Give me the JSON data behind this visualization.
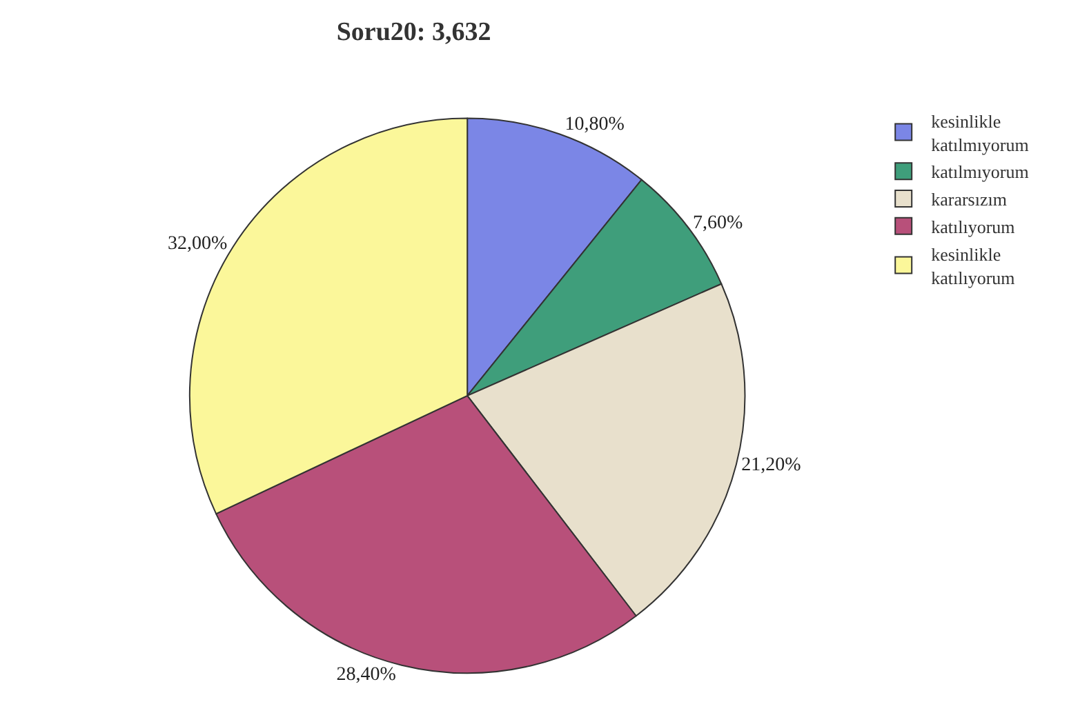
{
  "chart_data": {
    "type": "pie",
    "title": "Soru20: 3,632",
    "categories": [
      "kesinlikle katılmıyorum",
      "katılmıyorum",
      "kararsızım",
      "katılıyorum",
      "kesinlikle katılıyorum"
    ],
    "values": [
      10.8,
      7.6,
      21.2,
      28.4,
      32.0
    ],
    "value_labels": [
      "10,80%",
      "7,60%",
      "21,20%",
      "28,40%",
      "32,00%"
    ],
    "colors": [
      "#7b86e6",
      "#3f9e7b",
      "#e8e0cc",
      "#b8507a",
      "#fbf79a"
    ],
    "legend": "top right"
  }
}
